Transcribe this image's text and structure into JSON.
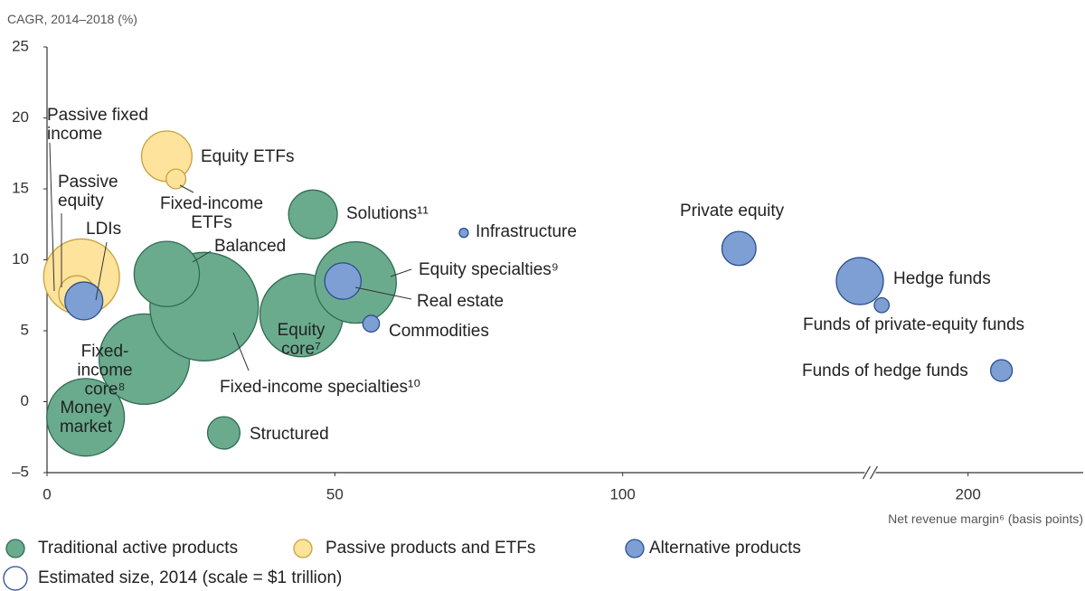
{
  "chart_data": {
    "type": "bubble",
    "y_label": "CAGR, 2014–2018 (%)",
    "x_label": "Net revenue margin⁶ (basis points)",
    "xlim": [
      0,
      220
    ],
    "x_break": [
      143,
      183
    ],
    "xticks": [
      0,
      50,
      100,
      200
    ],
    "ylim": [
      -5,
      25
    ],
    "yticks": [
      {
        "value": -5,
        "label": "–5"
      },
      0,
      5,
      10,
      15,
      20,
      25
    ],
    "grid": false,
    "size_legend": {
      "label": "Estimated size, 2014 (scale = $1 trillion)",
      "value": 1
    },
    "series": [
      {
        "name": "Traditional active products",
        "color": "#6aab8e",
        "edge": "#2f6b52",
        "points": [
          {
            "label": "Money\nmarket",
            "x": 6.7,
            "y": -1.1,
            "size": 10.9
          },
          {
            "label": "Fixed-\nincome\ncore⁸",
            "x": 16.9,
            "y": 3.0,
            "size": 14.8
          },
          {
            "label": "Fixed-income specialties¹⁰",
            "x": 27.3,
            "y": 6.7,
            "size": 21.3
          },
          {
            "label": "Balanced",
            "x": 20.8,
            "y": 9.0,
            "size": 7.7
          },
          {
            "label": "Solutions¹¹",
            "x": 46.2,
            "y": 13.2,
            "size": 4.3
          },
          {
            "label": "Equity\ncore⁷",
            "x": 44.2,
            "y": 6.1,
            "size": 12.5
          },
          {
            "label": "Equity specialties⁹",
            "x": 53.6,
            "y": 8.4,
            "size": 12.0
          },
          {
            "label": "Structured",
            "x": 30.7,
            "y": -2.2,
            "size": 1.9
          }
        ]
      },
      {
        "name": "Passive products and ETFs",
        "color": "#fde39b",
        "edge": "#c9a040",
        "points": [
          {
            "label": "Passive\nequity",
            "x": 6.0,
            "y": 8.8,
            "size": 10.4
          },
          {
            "label": "Passive fixed\nincome",
            "x": 5.2,
            "y": 7.6,
            "size": 2.4
          },
          {
            "label": "Equity ETFs",
            "x": 20.8,
            "y": 17.3,
            "size": 4.6
          },
          {
            "label": "Fixed-income\nETFs",
            "x": 22.4,
            "y": 15.7,
            "size": 0.7
          }
        ]
      },
      {
        "name": "Alternative products",
        "color": "#7d9fd3",
        "edge": "#2c4d8e",
        "points": [
          {
            "label": "LDIs",
            "x": 6.4,
            "y": 7.1,
            "size": 2.6
          },
          {
            "label": "Real estate",
            "x": 51.4,
            "y": 8.5,
            "size": 2.4
          },
          {
            "label": "Commodities",
            "x": 56.3,
            "y": 5.5,
            "size": 0.5
          },
          {
            "label": "Infrastructure",
            "x": 72.4,
            "y": 11.9,
            "size": 0.15
          },
          {
            "label": "Private equity",
            "x": 120.2,
            "y": 10.8,
            "size": 2.1
          },
          {
            "label": "Hedge funds",
            "x": 141.2,
            "y": 8.5,
            "size": 4.0
          },
          {
            "label": "Funds of private-equity funds",
            "x": 185,
            "y": 6.8,
            "size": 0.4
          },
          {
            "label": "Funds of hedge funds",
            "x": 205.8,
            "y": 2.2,
            "size": 0.85
          }
        ]
      }
    ]
  }
}
